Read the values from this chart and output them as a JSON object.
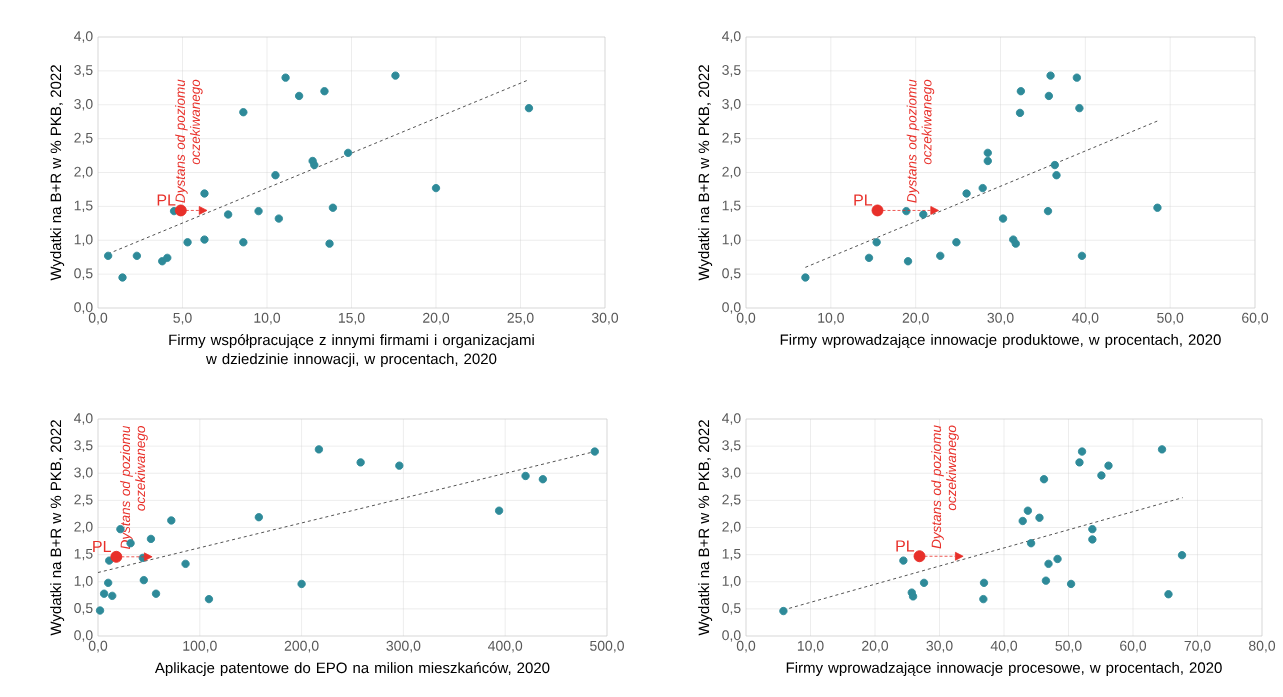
{
  "chart_data": [
    {
      "type": "scatter",
      "xlabel": "Firmy współpracujące z innymi firmami i organizacjami w dziedzinie innowacji, w procentach, 2020",
      "ylabel": "Wydatki na B+R w % PKB, 2022",
      "xlim": [
        0,
        30
      ],
      "ylim": [
        0,
        4
      ],
      "xticks": [
        {
          "value": 0,
          "label": "0,0"
        },
        {
          "value": 5,
          "label": "5,0"
        },
        {
          "value": 10,
          "label": "10,0"
        },
        {
          "value": 15,
          "label": "15,0"
        },
        {
          "value": 20,
          "label": "20,0"
        },
        {
          "value": 25,
          "label": "25,0"
        },
        {
          "value": 30,
          "label": "30,0"
        }
      ],
      "yticks": [
        {
          "value": 0,
          "label": "0,0"
        },
        {
          "value": 0.5,
          "label": "0,5"
        },
        {
          "value": 1,
          "label": "1,0"
        },
        {
          "value": 1.5,
          "label": "1,5"
        },
        {
          "value": 2,
          "label": "2,0"
        },
        {
          "value": 2.5,
          "label": "2,5"
        },
        {
          "value": 3,
          "label": "3,0"
        },
        {
          "value": 3.5,
          "label": "3,5"
        },
        {
          "value": 4,
          "label": "4,0"
        }
      ],
      "grid": true,
      "marker": "circle",
      "series": [
        {
          "color": "#2e8a99",
          "x": [
            0.6,
            1.45,
            2.3,
            3.8,
            4.1,
            4.5,
            5.3,
            6.3,
            6.3,
            7.7,
            8.6,
            8.6,
            9.5,
            10.5,
            10.7,
            11.1,
            11.9,
            12.7,
            12.8,
            13.4,
            13.7,
            13.9,
            14.8,
            17.6,
            20.0,
            25.5
          ],
          "values": [
            0.77,
            0.45,
            0.77,
            0.69,
            0.74,
            1.43,
            0.97,
            1.69,
            1.01,
            1.38,
            2.89,
            0.97,
            1.43,
            1.96,
            1.32,
            3.4,
            3.13,
            2.17,
            2.11,
            3.2,
            0.95,
            1.48,
            2.29,
            3.43,
            1.77,
            2.95
          ]
        },
        {
          "name": "PL",
          "color": "#e8302a",
          "x": [
            4.9
          ],
          "values": [
            1.44
          ]
        },
        {
          "type": "line",
          "color": "#404040",
          "line_style": "dashed",
          "marker": "none",
          "x": [
            0.6,
            25.5
          ],
          "values": [
            0.8,
            3.37
          ]
        }
      ],
      "annotations": [
        {
          "text": "Dystans od poziomu oczekiwanego",
          "x": 6.5,
          "y": 1.44
        }
      ]
    },
    {
      "type": "scatter",
      "xlabel": "Firmy wprowadzające innowacje produktowe, w procentach, 2020",
      "ylabel": "Wydatki na B+R w % PKB, 2022",
      "xlim": [
        0,
        60
      ],
      "ylim": [
        0,
        4
      ],
      "xticks": [
        {
          "value": 0,
          "label": "0,0"
        },
        {
          "value": 10,
          "label": "10,0"
        },
        {
          "value": 20,
          "label": "20,0"
        },
        {
          "value": 30,
          "label": "30,0"
        },
        {
          "value": 40,
          "label": "40,0"
        },
        {
          "value": 50,
          "label": "50,0"
        },
        {
          "value": 60,
          "label": "60,0"
        }
      ],
      "yticks": [
        {
          "value": 0,
          "label": "0,0"
        },
        {
          "value": 0.5,
          "label": "0,5"
        },
        {
          "value": 1,
          "label": "1,0"
        },
        {
          "value": 1.5,
          "label": "1,5"
        },
        {
          "value": 2,
          "label": "2,0"
        },
        {
          "value": 2.5,
          "label": "2,5"
        },
        {
          "value": 3,
          "label": "3,0"
        },
        {
          "value": 3.5,
          "label": "3,5"
        },
        {
          "value": 4,
          "label": "4,0"
        }
      ],
      "grid": true,
      "marker": "circle",
      "series": [
        {
          "color": "#2e8a99",
          "x": [
            7.0,
            14.5,
            15.4,
            18.9,
            19.1,
            20.9,
            22.9,
            24.8,
            26.0,
            27.9,
            28.5,
            28.5,
            30.3,
            31.5,
            31.8,
            32.3,
            32.4,
            35.6,
            35.7,
            35.9,
            36.4,
            36.6,
            39.0,
            39.3,
            39.6,
            48.5
          ],
          "values": [
            0.45,
            0.74,
            0.97,
            1.43,
            0.69,
            1.38,
            0.77,
            0.97,
            1.69,
            1.77,
            2.29,
            2.17,
            1.32,
            1.01,
            0.95,
            2.88,
            3.2,
            1.43,
            3.13,
            3.43,
            2.11,
            1.96,
            3.4,
            2.95,
            0.77,
            1.48
          ]
        },
        {
          "name": "PL",
          "color": "#e8302a",
          "x": [
            15.5
          ],
          "values": [
            1.44
          ]
        },
        {
          "type": "line",
          "color": "#404040",
          "line_style": "dashed",
          "marker": "none",
          "x": [
            7.0,
            48.5
          ],
          "values": [
            0.6,
            2.76
          ]
        }
      ],
      "annotations": [
        {
          "text": "Dystans od poziomu oczekiwanego",
          "x": 22.8,
          "y": 1.44
        }
      ]
    },
    {
      "type": "scatter",
      "xlabel": "Aplikacje patentowe do EPO na milion mieszkańców, 2020",
      "ylabel": "Wydatki na B+R w % PKB, 2022",
      "xlim": [
        0,
        500
      ],
      "ylim": [
        0,
        4
      ],
      "xticks": [
        {
          "value": 0,
          "label": "0,0"
        },
        {
          "value": 100,
          "label": "100,0"
        },
        {
          "value": 200,
          "label": "200,0"
        },
        {
          "value": 300,
          "label": "300,0"
        },
        {
          "value": 400,
          "label": "400,0"
        },
        {
          "value": 500,
          "label": "500,0"
        }
      ],
      "yticks": [
        {
          "value": 0,
          "label": "0,0"
        },
        {
          "value": 0.5,
          "label": "0,5"
        },
        {
          "value": 1,
          "label": "1,0"
        },
        {
          "value": 1.5,
          "label": "1,5"
        },
        {
          "value": 2,
          "label": "2,0"
        },
        {
          "value": 2.5,
          "label": "2,5"
        },
        {
          "value": 3,
          "label": "3,0"
        },
        {
          "value": 3.5,
          "label": "3,5"
        },
        {
          "value": 4,
          "label": "4,0"
        }
      ],
      "grid": true,
      "marker": "circle",
      "series": [
        {
          "color": "#2e8a99",
          "x": [
            2,
            6,
            10,
            11,
            14,
            22,
            32,
            44,
            45,
            52,
            57,
            72,
            86,
            109,
            158,
            200,
            217,
            258,
            296,
            394,
            420,
            437,
            488
          ],
          "values": [
            0.47,
            0.78,
            0.98,
            1.39,
            0.74,
            1.97,
            1.71,
            1.44,
            1.03,
            1.79,
            0.78,
            2.13,
            1.33,
            0.68,
            2.19,
            0.96,
            3.44,
            3.2,
            3.14,
            2.31,
            2.95,
            2.89,
            3.4
          ]
        },
        {
          "name": "PL",
          "color": "#e8302a",
          "x": [
            18
          ],
          "values": [
            1.46
          ]
        },
        {
          "type": "line",
          "color": "#404040",
          "line_style": "dashed",
          "marker": "none",
          "x": [
            0,
            488
          ],
          "values": [
            1.17,
            3.4
          ]
        }
      ],
      "annotations": [
        {
          "text": "Dystans od poziomu oczekiwanego",
          "x": 54,
          "y": 1.46
        }
      ]
    },
    {
      "type": "scatter",
      "xlabel": "Firmy wprowadzające innowacje procesowe, w procentach, 2020",
      "ylabel": "Wydatki na B+R w % PKB, 2022",
      "xlim": [
        0,
        80
      ],
      "ylim": [
        0,
        4
      ],
      "xticks": [
        {
          "value": 0,
          "label": "0,0"
        },
        {
          "value": 10,
          "label": "10,0"
        },
        {
          "value": 20,
          "label": "20,0"
        },
        {
          "value": 30,
          "label": "30,0"
        },
        {
          "value": 40,
          "label": "40,0"
        },
        {
          "value": 50,
          "label": "50,0"
        },
        {
          "value": 60,
          "label": "60,0"
        },
        {
          "value": 70,
          "label": "70,0"
        },
        {
          "value": 80,
          "label": "80,0"
        }
      ],
      "yticks": [
        {
          "value": 0,
          "label": "0,0"
        },
        {
          "value": 0.5,
          "label": "0,5"
        },
        {
          "value": 1,
          "label": "1,0"
        },
        {
          "value": 1.5,
          "label": "1,5"
        },
        {
          "value": 2,
          "label": "2,0"
        },
        {
          "value": 2.5,
          "label": "2,5"
        },
        {
          "value": 3,
          "label": "3,0"
        },
        {
          "value": 3.5,
          "label": "3,5"
        },
        {
          "value": 4,
          "label": "4,0"
        }
      ],
      "grid": true,
      "marker": "circle",
      "series": [
        {
          "color": "#2e8a99",
          "x": [
            5.8,
            24.4,
            25.7,
            25.9,
            27.6,
            36.9,
            36.8,
            42.9,
            43.7,
            44.2,
            45.5,
            46.2,
            46.5,
            46.9,
            48.3,
            50.4,
            51.7,
            52.1,
            53.7,
            53.7,
            55.1,
            56.2,
            64.5,
            65.5,
            67.6
          ],
          "values": [
            0.46,
            1.39,
            0.8,
            0.73,
            0.98,
            0.98,
            0.68,
            2.12,
            2.31,
            1.71,
            2.18,
            2.89,
            1.02,
            1.33,
            1.42,
            0.96,
            3.2,
            3.4,
            1.97,
            1.78,
            2.96,
            3.14,
            3.44,
            0.77,
            1.49
          ]
        },
        {
          "name": "PL",
          "color": "#e8302a",
          "x": [
            26.9
          ],
          "values": [
            1.47
          ]
        },
        {
          "type": "line",
          "color": "#404040",
          "line_style": "dashed",
          "marker": "none",
          "x": [
            5.8,
            67.7
          ],
          "values": [
            0.48,
            2.55
          ]
        }
      ],
      "annotations": [
        {
          "text": "Dystans od poziomu oczekiwanego",
          "x": 33.8,
          "y": 1.47
        }
      ]
    }
  ]
}
